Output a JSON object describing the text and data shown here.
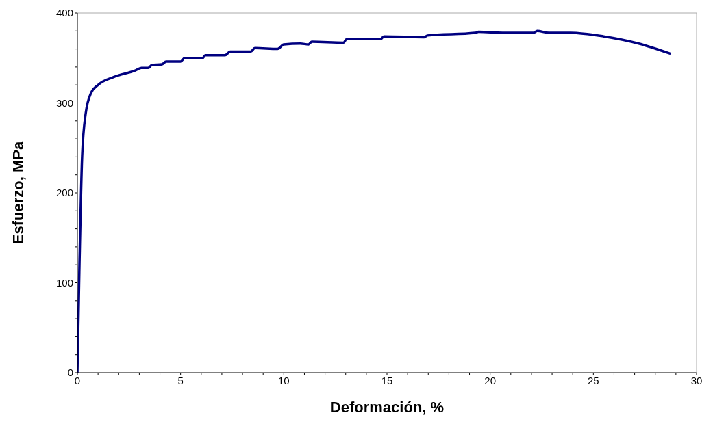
{
  "chart_data": {
    "type": "line",
    "xlabel": "Deformación, %",
    "ylabel": "Esfuerzo, MPa",
    "xlim": [
      0,
      30
    ],
    "xticks": [
      0,
      {
        "value": 1,
        "label": null
      },
      {
        "value": 2,
        "label": null
      },
      {
        "value": 3,
        "label": null
      },
      {
        "value": 4,
        "label": null
      },
      5,
      {
        "value": 6,
        "label": null
      },
      {
        "value": 7,
        "label": null
      },
      {
        "value": 8,
        "label": null
      },
      {
        "value": 9,
        "label": null
      },
      10,
      {
        "value": 11,
        "label": null
      },
      {
        "value": 12,
        "label": null
      },
      {
        "value": 13,
        "label": null
      },
      {
        "value": 14,
        "label": null
      },
      15,
      {
        "value": 16,
        "label": null
      },
      {
        "value": 17,
        "label": null
      },
      {
        "value": 18,
        "label": null
      },
      {
        "value": 19,
        "label": null
      },
      20,
      {
        "value": 21,
        "label": null
      },
      {
        "value": 22,
        "label": null
      },
      {
        "value": 23,
        "label": null
      },
      {
        "value": 24,
        "label": null
      },
      25,
      {
        "value": 26,
        "label": null
      },
      {
        "value": 27,
        "label": null
      },
      {
        "value": 28,
        "label": null
      },
      {
        "value": 29,
        "label": null
      },
      30
    ],
    "ylim": [
      0,
      400
    ],
    "yticks": [
      0,
      {
        "value": 20,
        "label": null
      },
      {
        "value": 40,
        "label": null
      },
      {
        "value": 60,
        "label": null
      },
      {
        "value": 80,
        "label": null
      },
      100,
      {
        "value": 120,
        "label": null
      },
      {
        "value": 140,
        "label": null
      },
      {
        "value": 160,
        "label": null
      },
      {
        "value": 180,
        "label": null
      },
      200,
      {
        "value": 220,
        "label": null
      },
      {
        "value": 240,
        "label": null
      },
      {
        "value": 260,
        "label": null
      },
      {
        "value": 280,
        "label": null
      },
      300,
      {
        "value": 320,
        "label": null
      },
      {
        "value": 340,
        "label": null
      },
      {
        "value": 360,
        "label": null
      },
      {
        "value": 380,
        "label": null
      },
      400
    ],
    "marker": "none",
    "line_style": "solid",
    "series": [
      {
        "color": "#000080",
        "x": [
          0,
          0.1,
          0.23,
          0.4,
          0.66,
          1.0,
          1.78,
          2.8,
          3.1,
          3.43,
          3.6,
          4.1,
          4.3,
          5.0,
          5.2,
          6.07,
          6.2,
          7.15,
          7.4,
          8.4,
          8.6,
          9.7,
          10.0,
          10.8,
          11.2,
          11.35,
          12.9,
          13.04,
          14.7,
          14.85,
          16.8,
          16.96,
          19.27,
          19.44,
          20.6,
          22.1,
          22.28,
          22.84,
          23.9,
          25.5,
          27.2,
          28.7
        ],
        "values": [
          0,
          120,
          241,
          288,
          311,
          320,
          329,
          336,
          339,
          339,
          342,
          343,
          346,
          346,
          350,
          350,
          353,
          353,
          357,
          357,
          361,
          360,
          365,
          366,
          365,
          368,
          367,
          371,
          371,
          374,
          373,
          375,
          378,
          379,
          378,
          378,
          380,
          378,
          378,
          374,
          366,
          355
        ]
      }
    ]
  }
}
